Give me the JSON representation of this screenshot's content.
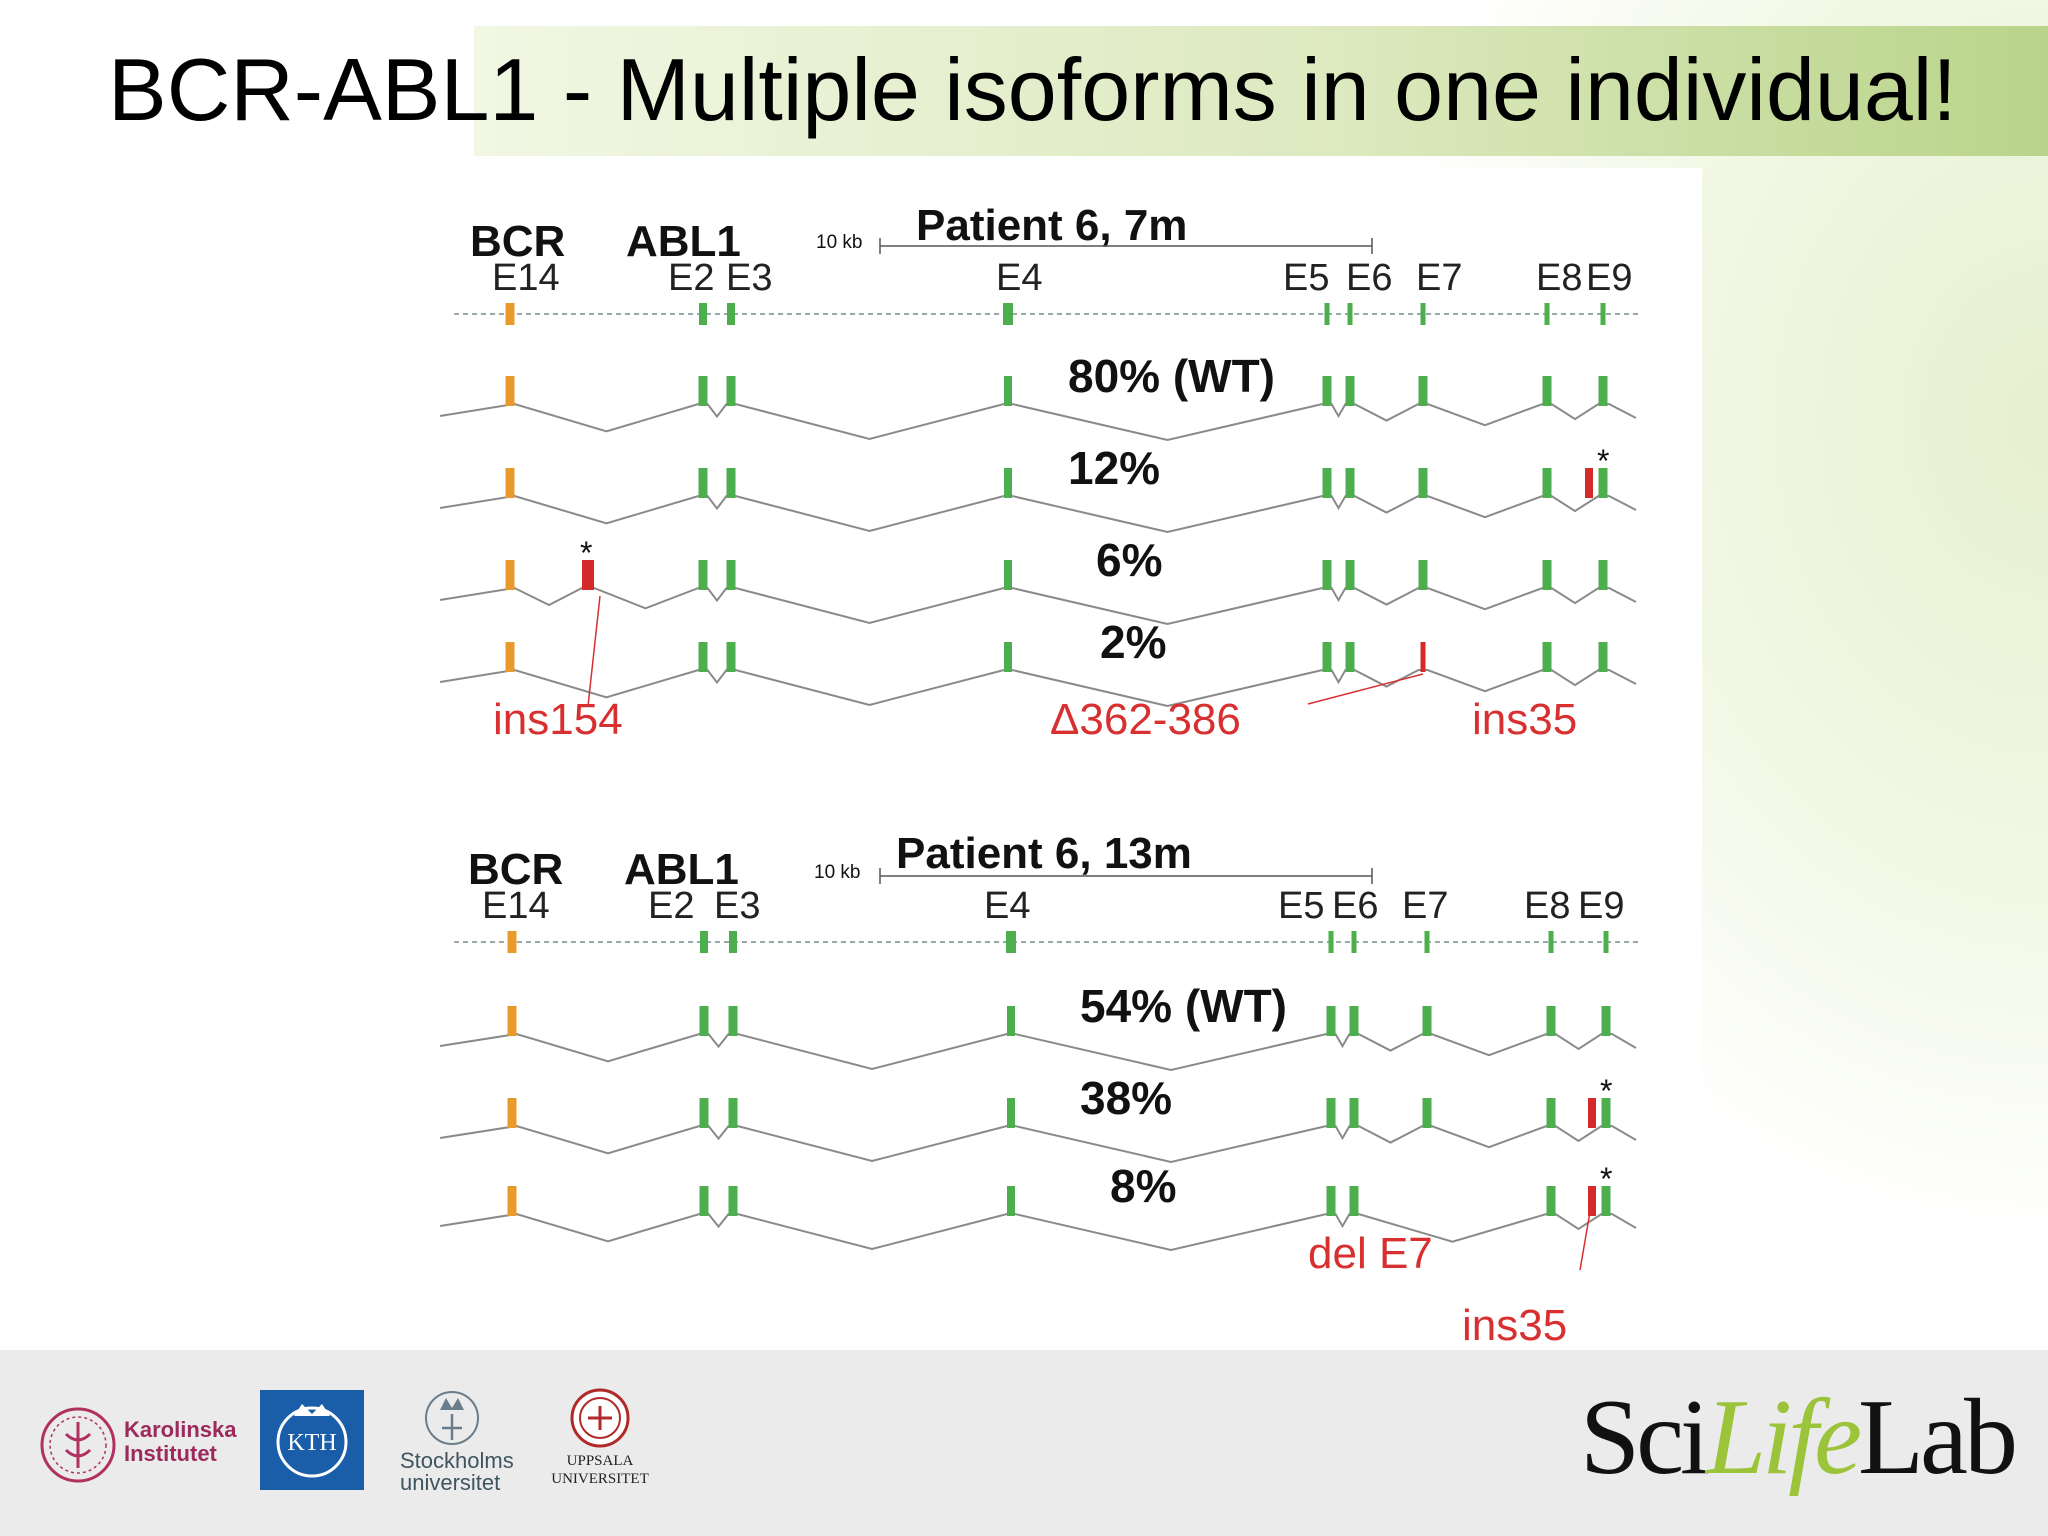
{
  "slide": {
    "title": "BCR-ABL1 - Multiple isoforms in one individual!"
  },
  "colors": {
    "bcr_exon": "#e89a2a",
    "abl1_exon": "#4cae4c",
    "variant_exon": "#d42a2a",
    "annotation": "#d83030",
    "intron_line": "#8a8a8a",
    "title_band_end": "#b9d48a"
  },
  "panels": [
    {
      "title": "Patient 6, 7m",
      "gene_bcr": "BCR",
      "gene_abl1": "ABL1",
      "scale_label": "10 kb",
      "exon_labels": [
        "E14",
        "E2",
        "E3",
        "E4",
        "E5",
        "E6",
        "E7",
        "E8",
        "E9"
      ],
      "isoforms": [
        {
          "label": "80% (WT)",
          "fraction": 0.8
        },
        {
          "label": "12%",
          "fraction": 0.12
        },
        {
          "label": "6%",
          "fraction": 0.06
        },
        {
          "label": "2%",
          "fraction": 0.02
        }
      ],
      "annotations": [
        "ins154",
        "Δ362-386",
        "ins35"
      ]
    },
    {
      "title": "Patient 6, 13m",
      "gene_bcr": "BCR",
      "gene_abl1": "ABL1",
      "scale_label": "10 kb",
      "exon_labels": [
        "E14",
        "E2",
        "E3",
        "E4",
        "E5",
        "E6",
        "E7",
        "E8",
        "E9"
      ],
      "isoforms": [
        {
          "label": "54% (WT)",
          "fraction": 0.54
        },
        {
          "label": "38%",
          "fraction": 0.38
        },
        {
          "label": "8%",
          "fraction": 0.08
        }
      ],
      "annotations": [
        "del E7",
        "ins35"
      ]
    }
  ],
  "asterisk": "*",
  "logos": {
    "karolinska": [
      "Karolinska",
      "Institutet"
    ],
    "kth": "KTH",
    "stockholm": [
      "Stockholms",
      "universitet"
    ],
    "uppsala": [
      "UPPSALA",
      "UNIVERSITET"
    ],
    "scilifelab": [
      "Sci",
      "Life",
      "Lab"
    ]
  }
}
